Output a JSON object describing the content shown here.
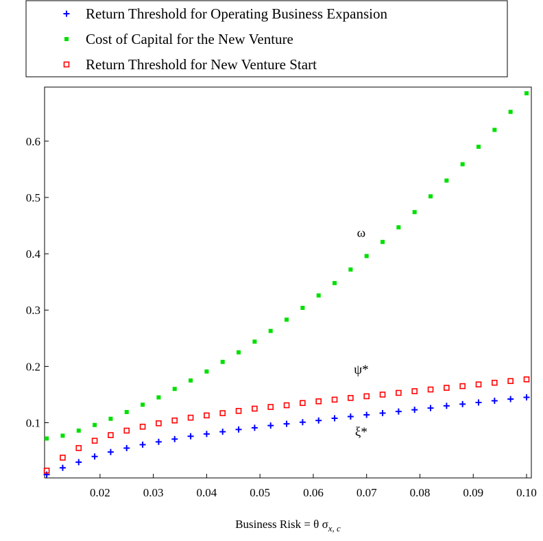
{
  "chart_data": {
    "type": "scatter",
    "legend": "top",
    "xlabel": {
      "text": "Business Risk = θ σ",
      "subscript": "x, c"
    },
    "x": [
      0.01,
      0.013,
      0.016,
      0.019,
      0.022,
      0.025,
      0.028,
      0.031,
      0.034,
      0.037,
      0.04,
      0.043,
      0.046,
      0.049,
      0.052,
      0.055,
      0.058,
      0.061,
      0.064,
      0.067,
      0.07,
      0.073,
      0.076,
      0.079,
      0.082,
      0.085,
      0.088,
      0.091,
      0.094,
      0.097,
      0.1
    ],
    "series": [
      {
        "name": "Return Threshold for Operating Business Expansion",
        "color": "#0000ff",
        "marker": "plus",
        "values": [
          0.008,
          0.02,
          0.03,
          0.04,
          0.048,
          0.055,
          0.061,
          0.066,
          0.071,
          0.076,
          0.08,
          0.084,
          0.088,
          0.091,
          0.095,
          0.098,
          0.101,
          0.104,
          0.108,
          0.111,
          0.114,
          0.117,
          0.12,
          0.123,
          0.126,
          0.13,
          0.133,
          0.136,
          0.139,
          0.142,
          0.145
        ]
      },
      {
        "name": "Cost of Capital for the New Venture",
        "color": "#00e000",
        "marker": "dot",
        "values": [
          0.072,
          0.077,
          0.086,
          0.096,
          0.107,
          0.119,
          0.132,
          0.145,
          0.16,
          0.175,
          0.191,
          0.208,
          0.225,
          0.244,
          0.263,
          0.283,
          0.304,
          0.326,
          0.348,
          0.372,
          0.396,
          0.421,
          0.447,
          0.474,
          0.502,
          0.53,
          0.559,
          0.59,
          0.62,
          0.652,
          0.685
        ]
      },
      {
        "name": "Return Threshold for New Venture Start",
        "color": "#ff0000",
        "marker": "square",
        "values": [
          0.015,
          0.038,
          0.055,
          0.068,
          0.078,
          0.086,
          0.093,
          0.099,
          0.104,
          0.109,
          0.113,
          0.117,
          0.121,
          0.125,
          0.128,
          0.131,
          0.135,
          0.138,
          0.141,
          0.144,
          0.147,
          0.15,
          0.153,
          0.156,
          0.159,
          0.162,
          0.165,
          0.168,
          0.171,
          0.174,
          0.177
        ]
      }
    ],
    "annotations": [
      {
        "text": "ω",
        "x": 0.069,
        "y": 0.43
      },
      {
        "text": "ψ*",
        "x": 0.069,
        "y": 0.187
      },
      {
        "text": "ξ*",
        "x": 0.069,
        "y": 0.076
      }
    ],
    "xlim": [
      0.0096,
      0.1009
    ],
    "ylim": [
      0.002,
      0.696
    ],
    "xticks": [
      0.02,
      0.03,
      0.04,
      0.05,
      0.06,
      0.07,
      0.08,
      0.09,
      {
        "value": 0.1,
        "label": "0.10"
      }
    ],
    "yticks": [
      0.1,
      0.2,
      0.3,
      0.4,
      0.5,
      0.6
    ]
  }
}
